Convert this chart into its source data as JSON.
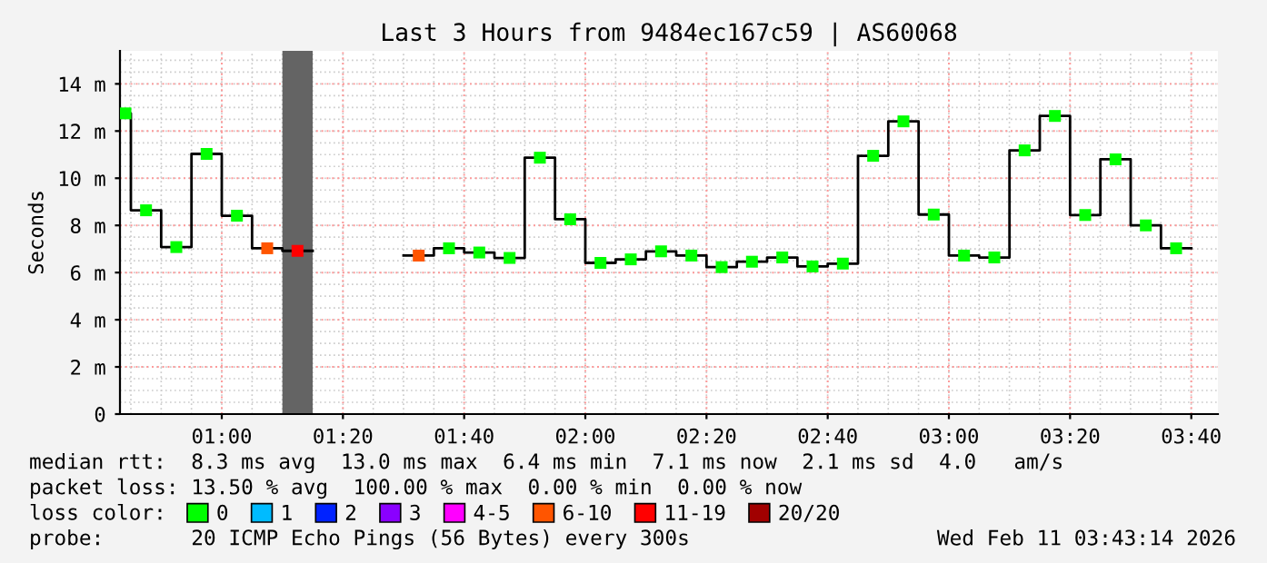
{
  "chart_data": {
    "type": "step",
    "title": "Last 3 Hours from 9484ec167c59 | AS60068",
    "ylabel": "Seconds",
    "x": [
      0.72,
      0.75,
      0.8333,
      0.9167,
      1.0,
      1.0833,
      1.1667,
      1.25,
      1.3333,
      1.4167,
      1.5,
      1.5833,
      1.6667,
      1.75,
      1.8333,
      1.9167,
      2.0,
      2.0833,
      2.1667,
      2.25,
      2.3333,
      2.4167,
      2.5,
      2.5833,
      2.6667,
      2.75,
      2.8333,
      2.9167,
      3.0,
      3.0833,
      3.1667,
      3.25,
      3.3333,
      3.4167,
      3.5,
      3.5833,
      3.6667
    ],
    "series": [
      {
        "color": "#000000",
        "values": [
          12.75,
          8.64,
          7.08,
          11.03,
          8.41,
          7.03,
          6.92,
          null,
          null,
          null,
          6.72,
          7.03,
          6.85,
          6.62,
          10.87,
          8.26,
          6.41,
          6.56,
          6.9,
          6.72,
          6.23,
          6.46,
          6.64,
          6.26,
          6.38,
          10.95,
          12.41,
          8.46,
          6.72,
          6.64,
          11.18,
          12.64,
          8.44,
          10.8,
          8.0,
          7.03,
          7.03
        ]
      },
      {
        "name": "0",
        "color": "#00ff00",
        "type": "scatter",
        "marker": "square",
        "x": [
          0.735,
          0.7917,
          0.875,
          0.9583,
          1.0417,
          1.625,
          1.7083,
          1.7917,
          1.875,
          1.9583,
          2.0417,
          2.125,
          2.2083,
          2.2917,
          2.375,
          2.4583,
          2.5417,
          2.625,
          2.7083,
          2.7917,
          2.875,
          2.9583,
          3.0417,
          3.125,
          3.2083,
          3.2917,
          3.375,
          3.4583,
          3.5417,
          3.625
        ],
        "values": [
          12.75,
          8.64,
          7.08,
          11.03,
          8.41,
          7.03,
          6.85,
          6.62,
          10.87,
          8.26,
          6.41,
          6.56,
          6.9,
          6.72,
          6.23,
          6.46,
          6.64,
          6.26,
          6.38,
          10.95,
          12.41,
          8.46,
          6.72,
          6.64,
          11.18,
          12.64,
          8.44,
          10.8,
          8.0,
          7.03
        ]
      },
      {
        "name": "1",
        "color": "#00bbff",
        "values": [
          null,
          null,
          null,
          null,
          null,
          null,
          null,
          null,
          null,
          null,
          null,
          null,
          null,
          null,
          null,
          null,
          null,
          null,
          null,
          null,
          null,
          null,
          null,
          null,
          null,
          null,
          null,
          null,
          null,
          null,
          null,
          null,
          null,
          null,
          null,
          null,
          null
        ]
      },
      {
        "name": "2",
        "color": "#0022ff",
        "values": [
          null,
          null,
          null,
          null,
          null,
          null,
          null,
          null,
          null,
          null,
          null,
          null,
          null,
          null,
          null,
          null,
          null,
          null,
          null,
          null,
          null,
          null,
          null,
          null,
          null,
          null,
          null,
          null,
          null,
          null,
          null,
          null,
          null,
          null,
          null,
          null,
          null
        ]
      },
      {
        "name": "3",
        "color": "#8a00ff",
        "values": [
          null,
          null,
          null,
          null,
          null,
          null,
          null,
          null,
          null,
          null,
          null,
          null,
          null,
          null,
          null,
          null,
          null,
          null,
          null,
          null,
          null,
          null,
          null,
          null,
          null,
          null,
          null,
          null,
          null,
          null,
          null,
          null,
          null,
          null,
          null,
          null,
          null
        ]
      },
      {
        "name": "4-5",
        "color": "#ff00ff",
        "values": [
          null,
          null,
          null,
          null,
          null,
          null,
          null,
          null,
          null,
          null,
          null,
          null,
          null,
          null,
          null,
          null,
          null,
          null,
          null,
          null,
          null,
          null,
          null,
          null,
          null,
          null,
          null,
          null,
          null,
          null,
          null,
          null,
          null,
          null,
          null,
          null,
          null
        ]
      },
      {
        "name": "6-10",
        "color": "#ff5500",
        "type": "scatter",
        "marker": "square",
        "x": [
          1.125,
          1.5417
        ],
        "values": [
          7.03,
          6.72
        ]
      },
      {
        "name": "11-19",
        "color": "#ff0000",
        "type": "scatter",
        "marker": "square",
        "x": [
          1.2083
        ],
        "values": [
          6.92
        ]
      },
      {
        "name": "20/20",
        "color": "#a10000",
        "values": [
          null,
          null,
          null,
          null,
          null,
          null,
          null,
          null,
          null,
          null,
          null,
          null,
          null,
          null,
          null,
          null,
          null,
          null,
          null,
          null,
          null,
          null,
          null,
          null,
          null,
          null,
          null,
          null,
          null,
          null,
          null,
          null,
          null,
          null,
          null,
          null,
          null
        ]
      }
    ],
    "bands": [
      {
        "axis": "x",
        "from": 1.1667,
        "to": 1.25,
        "color": "#646464"
      }
    ],
    "xlim": [
      0.72,
      3.74
    ],
    "ylim": [
      0,
      15.4
    ],
    "xticks": [
      {
        "value": 1.0,
        "label": "01:00"
      },
      {
        "value": 1.3333,
        "label": "01:20"
      },
      {
        "value": 1.6667,
        "label": "01:40"
      },
      {
        "value": 2.0,
        "label": "02:00"
      },
      {
        "value": 2.3333,
        "label": "02:20"
      },
      {
        "value": 2.6667,
        "label": "02:40"
      },
      {
        "value": 3.0,
        "label": "03:00"
      },
      {
        "value": 3.3333,
        "label": "03:20"
      },
      {
        "value": 3.6667,
        "label": "03:40"
      }
    ],
    "yticks": [
      0,
      {
        "value": 2,
        "label": "2 m"
      },
      {
        "value": 4,
        "label": "4 m"
      },
      {
        "value": 6,
        "label": "6 m"
      },
      {
        "value": 8,
        "label": "8 m"
      },
      {
        "value": 10,
        "label": "10 m"
      },
      {
        "value": 12,
        "label": "12 m"
      },
      {
        "value": 14,
        "label": "14 m"
      }
    ],
    "grid": true,
    "legend": "bottom",
    "legend_title": "loss color:",
    "annotations": [
      "median rtt:  8.3 ms avg  13.0 ms max  6.4 ms min  7.1 ms now  2.1 ms sd  4.0   am/s",
      "packet loss: 13.50 % avg  100.00 % max  0.00 % min  0.00 % now",
      "probe:       20 ICMP Echo Pings (56 Bytes) every 300s",
      "Wed Feb 11 03:43:14 2026"
    ]
  }
}
